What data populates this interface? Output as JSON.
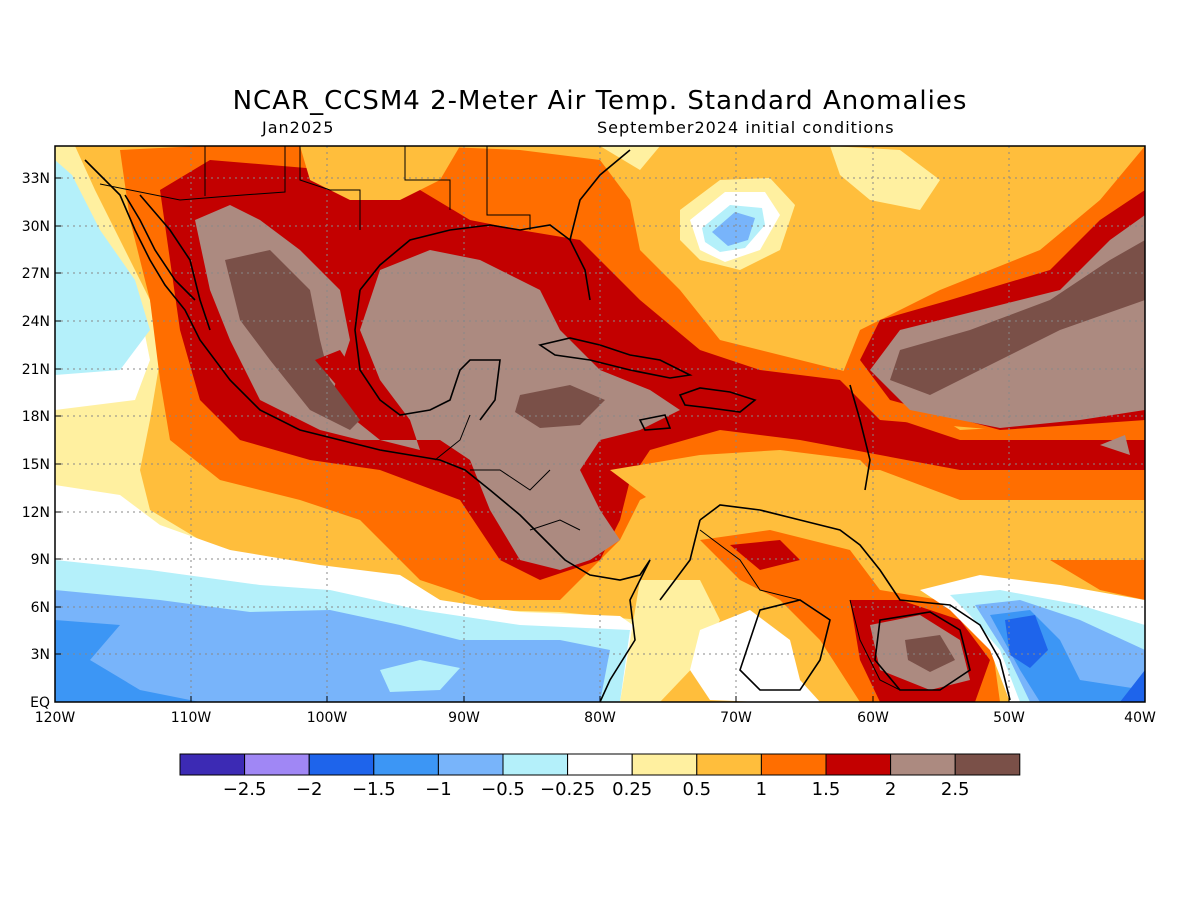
{
  "title": "NCAR_CCSM4 2-Meter Air Temp. Standard Anomalies",
  "subtitle_left": "Jan2025",
  "subtitle_right": "September2024 initial conditions",
  "lat_labels": [
    "33N",
    "30N",
    "27N",
    "24N",
    "21N",
    "18N",
    "15N",
    "12N",
    "9N",
    "6N",
    "3N",
    "EQ"
  ],
  "lon_labels": [
    "120W",
    "110W",
    "100W",
    "90W",
    "80W",
    "70W",
    "60W",
    "50W",
    "40W"
  ],
  "legend": {
    "labels": [
      "-2.5",
      "-2",
      "-1.5",
      "-1",
      "-0.5",
      "-0.25",
      "0.25",
      "0.5",
      "1",
      "1.5",
      "2",
      "2.5"
    ],
    "colors": [
      "#3c2ab4",
      "#a087f5",
      "#1e64eb",
      "#3c96f5",
      "#78b4fa",
      "#b4f0fa",
      "#ffffff",
      "#fff0a0",
      "#ffbe3c",
      "#ff6e00",
      "#c30000",
      "#ac8a80",
      "#7a5048"
    ]
  },
  "colors": {
    "background_field": "#ffbe3c"
  }
}
